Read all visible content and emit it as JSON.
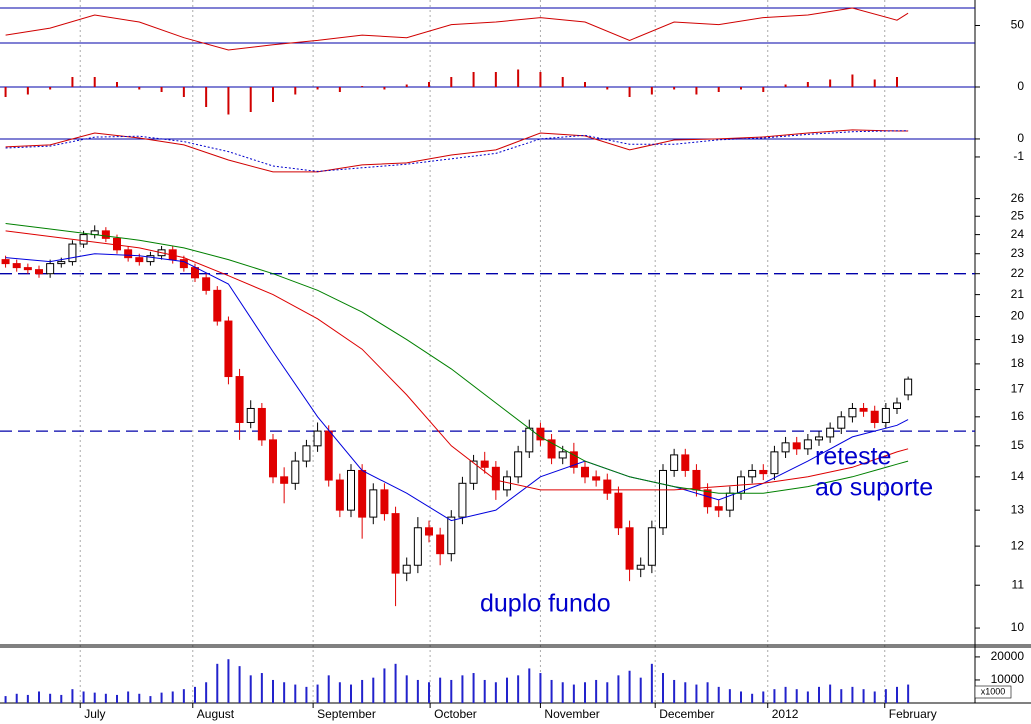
{
  "chart_data": [
    {
      "type": "line",
      "xlim": [
        -0.5,
        87
      ],
      "ylim": [
        8.3,
        79.1
      ],
      "yticks": [
        50
      ],
      "levels": [
        30,
        70
      ],
      "level_color": "#0000aa",
      "series": [
        {
          "color": "#d00000",
          "x": [
            0,
            4,
            8,
            12,
            16,
            20,
            24,
            28,
            32,
            36,
            40,
            44,
            48,
            52,
            56,
            60,
            64,
            68,
            72,
            76,
            80,
            81
          ],
          "values": [
            39,
            47,
            62,
            54,
            36,
            22,
            28,
            33,
            39,
            36,
            51,
            54,
            59,
            54,
            33,
            54,
            51,
            59,
            62,
            70,
            56,
            64
          ]
        }
      ]
    },
    {
      "type": "bar",
      "xlim": [
        -0.5,
        87
      ],
      "ylim": [
        -0.56,
        0.5
      ],
      "yticks": [
        0
      ],
      "levels": [
        0
      ],
      "level_color": "#0000aa",
      "series": [
        {
          "color": "#d00000",
          "x": [
            0,
            2,
            4,
            6,
            8,
            10,
            12,
            14,
            16,
            18,
            20,
            22,
            24,
            26,
            28,
            30,
            32,
            34,
            36,
            38,
            40,
            42,
            44,
            46,
            48,
            50,
            52,
            54,
            56,
            58,
            60,
            62,
            64,
            66,
            68,
            70,
            72,
            74,
            76,
            78,
            80
          ],
          "values": [
            -0.2,
            -0.15,
            -0.05,
            0.2,
            0.2,
            0.1,
            -0.05,
            -0.1,
            -0.2,
            -0.4,
            -0.55,
            -0.5,
            -0.3,
            -0.15,
            -0.05,
            -0.1,
            0.02,
            -0.05,
            0.05,
            0.1,
            0.2,
            0.3,
            0.3,
            0.35,
            0.3,
            0.2,
            0.1,
            -0.05,
            -0.2,
            -0.15,
            -0.05,
            -0.15,
            -0.1,
            -0.05,
            -0.1,
            0.05,
            0.1,
            0.15,
            0.25,
            0.15,
            0.2
          ]
        }
      ]
    },
    {
      "type": "line",
      "xlim": [
        -0.5,
        87
      ],
      "ylim": [
        -2.28,
        1.33
      ],
      "yticks": [
        0,
        -1
      ],
      "levels": [
        0
      ],
      "level_color": "#0000aa",
      "series": [
        {
          "color": "#d00000",
          "x": [
            0,
            4,
            8,
            12,
            16,
            20,
            24,
            28,
            32,
            36,
            40,
            44,
            48,
            52,
            56,
            60,
            64,
            68,
            72,
            76,
            80,
            81
          ],
          "values": [
            -0.44,
            -0.33,
            0.33,
            0.05,
            -0.33,
            -1.17,
            -1.83,
            -1.83,
            -1.44,
            -1.33,
            -0.89,
            -0.61,
            0.33,
            0.17,
            -0.61,
            -0.06,
            0,
            0.11,
            0.33,
            0.5,
            0.44,
            0.44
          ]
        },
        {
          "color": "#0000cc",
          "dash": true,
          "x": [
            0,
            4,
            8,
            12,
            16,
            20,
            24,
            28,
            32,
            36,
            40,
            44,
            48,
            52,
            56,
            60,
            64,
            68,
            72,
            76,
            80,
            81
          ],
          "values": [
            -0.5,
            -0.4,
            0.1,
            0.15,
            -0.15,
            -0.7,
            -1.5,
            -1.8,
            -1.6,
            -1.4,
            -1.1,
            -0.8,
            0,
            0.2,
            -0.3,
            -0.3,
            -0.05,
            0.05,
            0.25,
            0.4,
            0.45,
            0.45
          ]
        }
      ]
    },
    {
      "type": "candlestick",
      "xlim": [
        -0.5,
        87
      ],
      "ylim": [
        9.63,
        27.1
      ],
      "log_scale": true,
      "yticks": [
        10,
        11,
        12,
        13,
        14,
        15,
        16,
        17,
        18,
        19,
        20,
        21,
        22,
        23,
        24,
        25,
        26
      ],
      "levels": [
        22,
        15.5
      ],
      "level_color": "#0000aa",
      "level_dashed": true,
      "up_color": "#ffffff",
      "down_color": "#e00000",
      "open": [
        22.7,
        22.5,
        22.3,
        22.2,
        22.0,
        22.5,
        22.6,
        23.5,
        24.0,
        24.2,
        23.8,
        23.2,
        22.8,
        22.6,
        22.9,
        23.2,
        22.7,
        22.3,
        21.8,
        21.2,
        19.8,
        17.5,
        15.8,
        16.3,
        15.2,
        14.0,
        13.8,
        14.5,
        15.0,
        15.5,
        13.9,
        13.0,
        14.2,
        12.8,
        13.6,
        12.9,
        11.3,
        11.5,
        12.5,
        12.3,
        11.8,
        12.8,
        13.8,
        14.5,
        14.3,
        13.6,
        14.0,
        14.8,
        15.6,
        15.2,
        14.6,
        14.8,
        14.3,
        14.0,
        13.9,
        13.5,
        12.5,
        11.4,
        11.5,
        12.5,
        14.2,
        14.7,
        14.2,
        13.6,
        13.1,
        13.0,
        13.5,
        14.0,
        14.2,
        14.1,
        14.8,
        15.1,
        14.9,
        15.2,
        15.3,
        15.6,
        16.0,
        16.3,
        16.2,
        15.8,
        16.3,
        16.8
      ],
      "high": [
        22.9,
        22.7,
        22.5,
        22.4,
        22.7,
        22.8,
        23.7,
        24.2,
        24.5,
        24.4,
        24.0,
        23.4,
        23.0,
        23.1,
        23.4,
        23.4,
        22.9,
        22.5,
        22.0,
        21.4,
        20.0,
        17.8,
        16.6,
        16.5,
        15.4,
        14.3,
        14.8,
        15.2,
        15.8,
        15.7,
        14.1,
        14.4,
        14.4,
        13.8,
        13.8,
        13.1,
        11.7,
        12.8,
        12.7,
        12.5,
        13.0,
        14.0,
        14.7,
        14.8,
        14.5,
        14.2,
        15.0,
        15.9,
        15.8,
        15.4,
        15.0,
        15.1,
        14.5,
        14.2,
        14.1,
        13.7,
        12.7,
        11.7,
        12.7,
        14.4,
        14.9,
        14.9,
        14.4,
        13.8,
        13.3,
        13.7,
        14.2,
        14.4,
        14.4,
        15.0,
        15.3,
        15.3,
        15.4,
        15.5,
        15.8,
        16.2,
        16.5,
        16.5,
        16.4,
        16.5,
        16.7,
        17.5
      ],
      "low": [
        22.3,
        22.1,
        22.0,
        21.8,
        21.8,
        22.3,
        22.4,
        23.3,
        23.8,
        23.6,
        23.0,
        22.6,
        22.4,
        22.4,
        22.7,
        22.5,
        22.1,
        21.6,
        21.0,
        19.6,
        17.2,
        15.2,
        15.6,
        15.0,
        13.8,
        13.2,
        13.6,
        14.3,
        14.8,
        13.7,
        12.8,
        12.8,
        12.2,
        12.6,
        12.7,
        10.5,
        11.1,
        11.3,
        12.1,
        11.5,
        11.6,
        12.6,
        13.6,
        14.1,
        13.3,
        13.4,
        13.8,
        14.6,
        15.0,
        14.4,
        14.4,
        14.1,
        13.8,
        13.7,
        13.3,
        12.3,
        11.1,
        11.2,
        11.3,
        12.3,
        14.0,
        14.0,
        13.4,
        12.9,
        12.8,
        12.8,
        13.3,
        13.8,
        13.9,
        13.9,
        14.6,
        14.7,
        14.7,
        15.0,
        15.1,
        15.4,
        15.8,
        16.0,
        15.6,
        15.6,
        16.1,
        16.6
      ],
      "close": [
        22.5,
        22.3,
        22.2,
        22.0,
        22.5,
        22.6,
        23.5,
        24.0,
        24.2,
        23.8,
        23.2,
        22.8,
        22.6,
        22.9,
        23.2,
        22.7,
        22.3,
        21.8,
        21.2,
        19.8,
        17.5,
        15.8,
        16.3,
        15.2,
        14.0,
        13.8,
        14.5,
        15.0,
        15.5,
        13.9,
        13.0,
        14.2,
        12.8,
        13.6,
        12.9,
        11.3,
        11.5,
        12.5,
        12.3,
        11.8,
        12.8,
        13.8,
        14.5,
        14.3,
        13.6,
        14.0,
        14.8,
        15.6,
        15.2,
        14.6,
        14.8,
        14.3,
        14.0,
        13.9,
        13.5,
        12.5,
        11.4,
        11.5,
        12.5,
        14.2,
        14.7,
        14.2,
        13.6,
        13.1,
        13.0,
        13.5,
        14.0,
        14.2,
        14.1,
        14.8,
        15.1,
        14.9,
        15.2,
        15.3,
        15.6,
        16.0,
        16.3,
        16.2,
        15.8,
        16.3,
        16.5,
        17.4
      ],
      "series": [
        {
          "color": "#0000dd",
          "x": [
            0,
            4,
            8,
            12,
            16,
            20,
            24,
            28,
            32,
            36,
            40,
            44,
            48,
            52,
            56,
            60,
            64,
            68,
            72,
            76,
            80,
            81
          ],
          "values": [
            22.8,
            22.6,
            23.0,
            22.9,
            22.6,
            21.5,
            18.5,
            16.0,
            14.2,
            13.5,
            12.7,
            13.0,
            14.0,
            14.5,
            14.0,
            13.7,
            13.3,
            13.8,
            14.5,
            15.3,
            15.7,
            15.9
          ]
        },
        {
          "color": "#dd0000",
          "x": [
            0,
            4,
            8,
            12,
            16,
            20,
            24,
            28,
            32,
            36,
            40,
            44,
            48,
            52,
            56,
            60,
            64,
            68,
            72,
            76,
            80,
            81
          ],
          "values": [
            24.2,
            23.9,
            23.6,
            23.3,
            22.8,
            21.9,
            21.0,
            19.9,
            18.6,
            16.8,
            15.0,
            13.9,
            13.6,
            13.6,
            13.6,
            13.6,
            13.7,
            13.8,
            14.0,
            14.3,
            14.8,
            14.9
          ]
        },
        {
          "color": "#008000",
          "x": [
            0,
            4,
            8,
            12,
            16,
            20,
            24,
            28,
            32,
            36,
            40,
            44,
            48,
            52,
            56,
            60,
            64,
            68,
            72,
            76,
            80,
            81
          ],
          "values": [
            24.6,
            24.3,
            24.0,
            23.7,
            23.3,
            22.7,
            22.0,
            21.2,
            20.2,
            19.0,
            17.8,
            16.5,
            15.3,
            14.5,
            14.0,
            13.7,
            13.5,
            13.5,
            13.7,
            14.0,
            14.4,
            14.5
          ]
        }
      ],
      "annotations": [
        [
          "duplo fundo"
        ],
        [
          "reteste",
          "ao suporte"
        ]
      ],
      "annotation_color": "#0000cc"
    },
    {
      "type": "bar",
      "xlim": [
        -0.5,
        87
      ],
      "ylim": [
        0,
        24300
      ],
      "yticks": [
        10000,
        20000
      ],
      "unit_label": "x1000",
      "series": [
        {
          "color": "#2222cc",
          "values": [
            3000,
            4000,
            3500,
            5000,
            4000,
            3500,
            6000,
            5000,
            4500,
            4000,
            3500,
            5000,
            4000,
            3000,
            4500,
            5000,
            6000,
            7000,
            9000,
            17000,
            19000,
            16000,
            12000,
            13000,
            10000,
            9000,
            8000,
            7000,
            8000,
            12000,
            9000,
            8000,
            10000,
            11000,
            15000,
            17000,
            12000,
            10000,
            9000,
            11000,
            10000,
            12000,
            13000,
            10000,
            9000,
            11000,
            12000,
            15000,
            13000,
            10000,
            9000,
            8000,
            9000,
            10000,
            9000,
            12000,
            14000,
            11000,
            17000,
            13000,
            10000,
            9000,
            8000,
            9000,
            7000,
            6000,
            5000,
            4000,
            5000,
            6000,
            7000,
            6000,
            5000,
            7000,
            8000,
            6000,
            7000,
            6000,
            5000,
            6000,
            7000,
            8000
          ]
        }
      ],
      "xticks": [
        {
          "value": 6.7,
          "label": "July"
        },
        {
          "value": 16.8,
          "label": "August"
        },
        {
          "value": 27.6,
          "label": "September"
        },
        {
          "value": 38.1,
          "label": "October"
        },
        {
          "value": 48,
          "label": "November"
        },
        {
          "value": 58.3,
          "label": "December"
        },
        {
          "value": 68.4,
          "label": "2012"
        },
        {
          "value": 78.9,
          "label": "February"
        }
      ]
    }
  ]
}
